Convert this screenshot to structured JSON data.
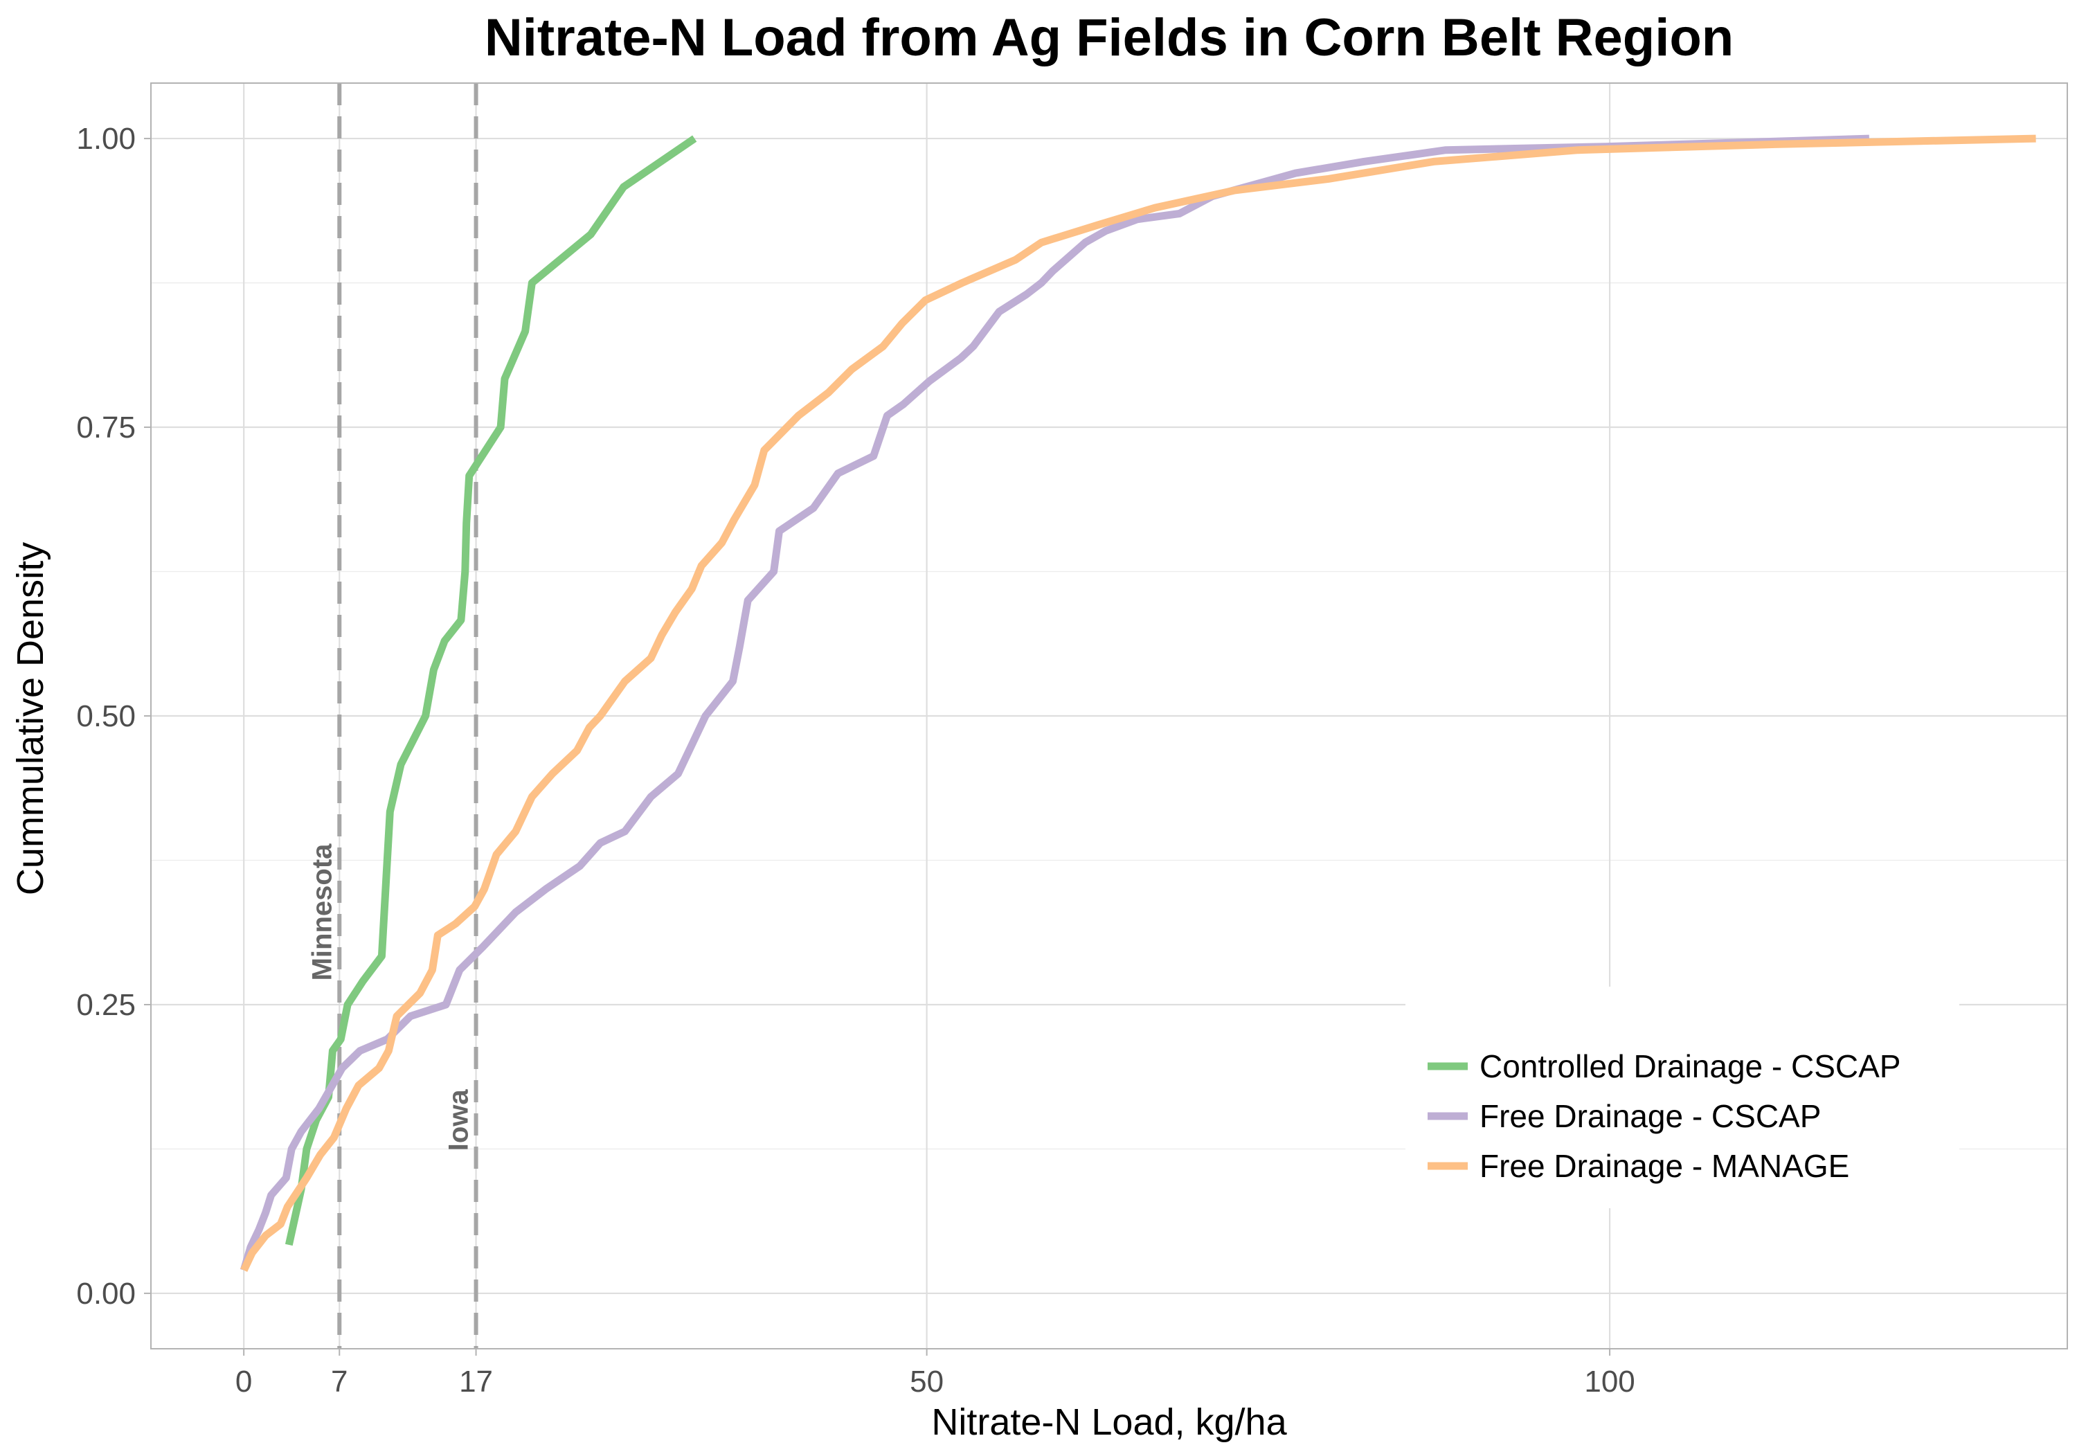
{
  "chart_data": {
    "type": "line",
    "title": "Nitrate-N Load from Ag Fields in Corn Belt Region",
    "xlabel": "Nitrate-N Load, kg/ha",
    "ylabel": "Cummulative Density",
    "xlim": [
      -6.8,
      133.5
    ],
    "ylim": [
      -0.048,
      1.048
    ],
    "x_ticks": [
      0,
      7,
      17,
      50,
      100
    ],
    "x_tick_labels": [
      "0",
      "7",
      "17",
      "50",
      "100"
    ],
    "y_ticks": [
      0,
      0.25,
      0.5,
      0.75,
      1
    ],
    "y_tick_labels": [
      "0.00",
      "0.25",
      "0.50",
      "0.75",
      "1.00"
    ],
    "grid": true,
    "legend_position": "bottom-right",
    "reference_lines": [
      {
        "x": 7,
        "label": "Minnesota",
        "color": "#a6a6a6"
      },
      {
        "x": 17,
        "label": "Iowa",
        "color": "#a6a6a6"
      }
    ],
    "series": [
      {
        "name": "Controlled Drainage - CSCAP",
        "color": "#7fc97f",
        "points": [
          [
            3.3,
            0.042
          ],
          [
            4.2,
            0.09
          ],
          [
            4.6,
            0.125
          ],
          [
            5.3,
            0.15
          ],
          [
            6.2,
            0.17
          ],
          [
            6.5,
            0.21
          ],
          [
            7.1,
            0.22
          ],
          [
            7.6,
            0.25
          ],
          [
            8.7,
            0.27
          ],
          [
            10.1,
            0.292
          ],
          [
            10.5,
            0.375
          ],
          [
            10.7,
            0.417
          ],
          [
            11.5,
            0.458
          ],
          [
            13.3,
            0.5
          ],
          [
            13.9,
            0.54
          ],
          [
            14.7,
            0.565
          ],
          [
            15.9,
            0.583
          ],
          [
            16.2,
            0.625
          ],
          [
            16.3,
            0.667
          ],
          [
            16.5,
            0.708
          ],
          [
            18.8,
            0.75
          ],
          [
            19.1,
            0.792
          ],
          [
            20.6,
            0.833
          ],
          [
            21.1,
            0.875
          ],
          [
            25.4,
            0.917
          ],
          [
            27.8,
            0.958
          ],
          [
            33.0,
            1.0
          ]
        ]
      },
      {
        "name": "Free Drainage - CSCAP",
        "color": "#beaed4",
        "points": [
          [
            0,
            0.02
          ],
          [
            0.5,
            0.04
          ],
          [
            1.1,
            0.055
          ],
          [
            1.6,
            0.07
          ],
          [
            2.0,
            0.085
          ],
          [
            3.1,
            0.1
          ],
          [
            3.5,
            0.125
          ],
          [
            4.2,
            0.14
          ],
          [
            5.5,
            0.16
          ],
          [
            7.2,
            0.195
          ],
          [
            8.5,
            0.21
          ],
          [
            10.5,
            0.22
          ],
          [
            12.2,
            0.24
          ],
          [
            14.8,
            0.25
          ],
          [
            15.8,
            0.28
          ],
          [
            17.5,
            0.3
          ],
          [
            19.9,
            0.33
          ],
          [
            22.1,
            0.35
          ],
          [
            24.6,
            0.37
          ],
          [
            26.1,
            0.39
          ],
          [
            27.9,
            0.4
          ],
          [
            29.8,
            0.43
          ],
          [
            31.8,
            0.45
          ],
          [
            32.8,
            0.475
          ],
          [
            33.8,
            0.5
          ],
          [
            35.8,
            0.53
          ],
          [
            36.3,
            0.56
          ],
          [
            36.9,
            0.6
          ],
          [
            38.8,
            0.625
          ],
          [
            39.2,
            0.66
          ],
          [
            41.7,
            0.68
          ],
          [
            43.5,
            0.71
          ],
          [
            46.1,
            0.725
          ],
          [
            47.1,
            0.76
          ],
          [
            48.3,
            0.77
          ],
          [
            50.2,
            0.79
          ],
          [
            52.5,
            0.81
          ],
          [
            53.4,
            0.82
          ],
          [
            55.3,
            0.85
          ],
          [
            57.3,
            0.865
          ],
          [
            58.4,
            0.875
          ],
          [
            59.2,
            0.885
          ],
          [
            61.6,
            0.91
          ],
          [
            63.1,
            0.92
          ],
          [
            65.4,
            0.93
          ],
          [
            68.5,
            0.935
          ],
          [
            70.9,
            0.95
          ],
          [
            77.0,
            0.97
          ],
          [
            82.0,
            0.98
          ],
          [
            88.0,
            0.99
          ],
          [
            99.7,
            0.993
          ],
          [
            110.8,
            0.997
          ],
          [
            119.0,
            1.0
          ]
        ]
      },
      {
        "name": "Free Drainage - MANAGE",
        "color": "#fdc086",
        "points": [
          [
            0,
            0.02
          ],
          [
            0.6,
            0.035
          ],
          [
            1.6,
            0.05
          ],
          [
            2.7,
            0.06
          ],
          [
            3.2,
            0.075
          ],
          [
            4.6,
            0.1
          ],
          [
            5.6,
            0.12
          ],
          [
            6.6,
            0.135
          ],
          [
            7.5,
            0.16
          ],
          [
            8.4,
            0.18
          ],
          [
            9.9,
            0.195
          ],
          [
            10.6,
            0.21
          ],
          [
            11.2,
            0.24
          ],
          [
            12.9,
            0.26
          ],
          [
            13.8,
            0.28
          ],
          [
            14.2,
            0.31
          ],
          [
            15.5,
            0.32
          ],
          [
            16.9,
            0.335
          ],
          [
            17.6,
            0.35
          ],
          [
            18.5,
            0.38
          ],
          [
            19.9,
            0.4
          ],
          [
            21.1,
            0.43
          ],
          [
            22.6,
            0.45
          ],
          [
            24.4,
            0.47
          ],
          [
            25.3,
            0.49
          ],
          [
            26.1,
            0.5
          ],
          [
            27.9,
            0.53
          ],
          [
            29.8,
            0.55
          ],
          [
            30.6,
            0.57
          ],
          [
            31.6,
            0.59
          ],
          [
            32.8,
            0.61
          ],
          [
            33.5,
            0.63
          ],
          [
            35.0,
            0.65
          ],
          [
            35.9,
            0.67
          ],
          [
            37.4,
            0.7
          ],
          [
            38.1,
            0.73
          ],
          [
            40.6,
            0.76
          ],
          [
            42.8,
            0.78
          ],
          [
            44.5,
            0.8
          ],
          [
            46.8,
            0.82
          ],
          [
            48.2,
            0.84
          ],
          [
            49.9,
            0.86
          ],
          [
            52.6,
            0.875
          ],
          [
            56.5,
            0.895
          ],
          [
            58.4,
            0.91
          ],
          [
            62.5,
            0.925
          ],
          [
            66.7,
            0.94
          ],
          [
            72.5,
            0.955
          ],
          [
            79.4,
            0.965
          ],
          [
            87.1,
            0.98
          ],
          [
            97.7,
            0.99
          ],
          [
            112.1,
            0.995
          ],
          [
            131.2,
            1.0
          ]
        ]
      }
    ]
  }
}
